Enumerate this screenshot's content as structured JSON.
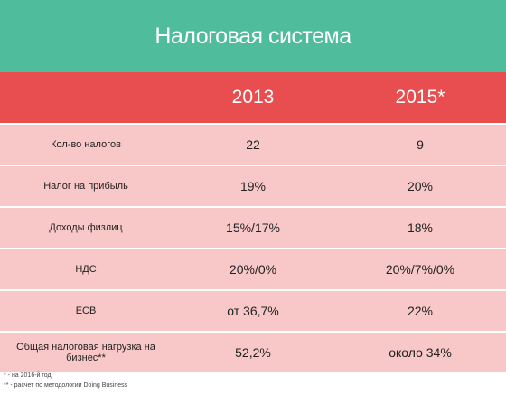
{
  "header": {
    "title": "Налоговая система"
  },
  "table": {
    "columns": [
      "2013",
      "2015*"
    ],
    "rows": [
      [
        "Кол-во налогов",
        "22",
        "9"
      ],
      [
        "Налог на прибыль",
        "19%",
        "20%"
      ],
      [
        "Доходы физлиц",
        "15%/17%",
        "18%"
      ],
      [
        "НДС",
        "20%/0%",
        "20%/7%/0%"
      ],
      [
        "ЕСВ",
        "от 36,7%",
        "22%"
      ],
      [
        "Общая налоговая нагрузка на бизнес**",
        "52,2%",
        "около 34%"
      ]
    ]
  },
  "footnotes": [
    "* - на 2016-й год",
    "** - расчет по методологии Doing Business"
  ]
}
